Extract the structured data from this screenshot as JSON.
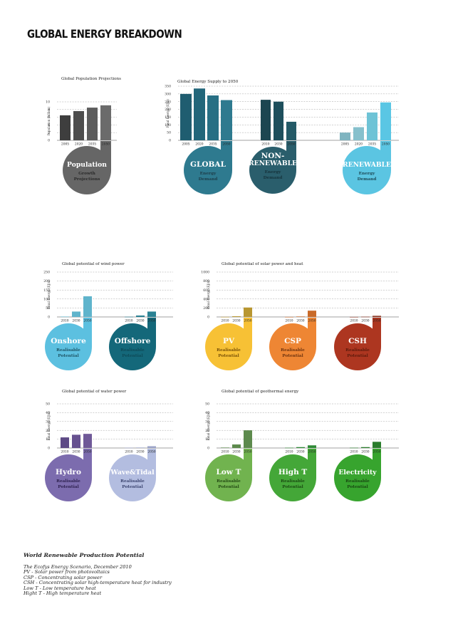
{
  "page": {
    "title": "GLOBAL ENERGY BREAKDOWN"
  },
  "footer": {
    "heading": "World Renewable Production Potential",
    "lines": [
      "The Ecofys Energy Scenario, December 2010",
      "PV - Solar power from photovoltaics",
      "CSP - Concentrating solar power",
      "CSH - Concentrating solar high-temperature heat for industry",
      "Low T - Low temperature heat",
      "Hight T - High temperature heat"
    ]
  },
  "chart_data": [
    {
      "id": "population",
      "type": "bar",
      "title": "Global Population Projections",
      "ylabel": "Population (billion)",
      "ylim": [
        0,
        10
      ],
      "yticks": [
        0,
        2,
        4,
        6,
        8,
        10
      ],
      "grid": true,
      "groups": [
        {
          "categories": [
            "2005",
            "2020",
            "2035",
            "2050"
          ],
          "values": [
            6.5,
            7.6,
            8.5,
            9.1
          ],
          "colors": [
            "#3e3e3e",
            "#4d4d4d",
            "#5c5c5c",
            "#6b6b6b"
          ],
          "label": {
            "title": [
              "Population"
            ],
            "sub": [
              "Growth",
              "Projections"
            ],
            "color": "#666666",
            "title_color": "#ffffff",
            "sub_color": "#2a2a2a"
          }
        }
      ]
    },
    {
      "id": "supply",
      "type": "bar",
      "title": "Global Energy Supply to 2050",
      "ylabel": "Final Energy (EJ/a)",
      "ylim": [
        0,
        350
      ],
      "yticks": [
        0,
        50,
        100,
        150,
        200,
        250,
        300,
        350
      ],
      "grid": true,
      "groups": [
        {
          "categories": [
            "2005",
            "2020",
            "2035",
            "2050"
          ],
          "values": [
            300,
            335,
            290,
            260
          ],
          "colors": [
            "#1f5d70",
            "#22667a",
            "#276f84",
            "#2e7a8f"
          ],
          "label": {
            "title": [
              "GLOBAL"
            ],
            "sub": [
              "Energy",
              "Demand"
            ],
            "color": "#2e7a8f",
            "title_color": "#ffffff",
            "sub_color": "#1d3e4a"
          }
        },
        {
          "categories": [
            "2010",
            "2030",
            "2050"
          ],
          "values": [
            262,
            250,
            120
          ],
          "colors": [
            "#1c4651",
            "#1e4f5c",
            "#245a67"
          ],
          "label": {
            "title": [
              "NON-",
              "RENEWABLE"
            ],
            "sub": [
              "Energy",
              "Demand"
            ],
            "color": "#2a5e6c",
            "title_color": "#ffffff",
            "sub_color": "#16343d"
          }
        },
        {
          "categories": [
            "2005",
            "2020",
            "2035",
            "2050"
          ],
          "values": [
            50,
            85,
            180,
            245
          ],
          "colors": [
            "#7fb4c0",
            "#86c0cc",
            "#6ec3d6",
            "#5ac6e4"
          ],
          "label": {
            "title": [
              "RENEWABLE"
            ],
            "sub": [
              "Energy",
              "Demand"
            ],
            "color": "#5bc5e2",
            "title_color": "#ffffff",
            "sub_color": "#1e4c5a"
          }
        }
      ]
    },
    {
      "id": "wind",
      "type": "bar",
      "title": "Global potential of wind power",
      "ylabel": "Final Energy (EJ/a)",
      "ylim": [
        0,
        250
      ],
      "yticks": [
        0,
        50,
        100,
        150,
        200,
        250
      ],
      "grid": true,
      "groups": [
        {
          "categories": [
            "2010",
            "2030",
            "2050"
          ],
          "values": [
            2,
            30,
            115
          ],
          "colors": [
            "#5fb4cc",
            "#5fb4cc",
            "#5fb4cc"
          ],
          "label": {
            "title": [
              "Onshore"
            ],
            "sub": [
              "Realisable",
              "Potential"
            ],
            "color": "#5cc0e0",
            "title_color": "#ffffff",
            "sub_color": "#1f5566"
          }
        },
        {
          "categories": [
            "2010",
            "2030",
            "2050"
          ],
          "values": [
            1,
            8,
            30
          ],
          "colors": [
            "#2a8294",
            "#2a8294",
            "#2a8294"
          ],
          "label": {
            "title": [
              "Offshore"
            ],
            "sub": [
              "Realisable",
              "Potential"
            ],
            "color": "#14687a",
            "title_color": "#ffffff",
            "sub_color": "#0e4a57"
          }
        }
      ]
    },
    {
      "id": "solar",
      "type": "bar",
      "title": "Global potential of solar power and heat",
      "ylabel": "Final Energy (EJ/a)",
      "ylim": [
        0,
        1000
      ],
      "yticks": [
        0,
        200,
        400,
        600,
        800,
        1000
      ],
      "grid": true,
      "groups": [
        {
          "categories": [
            "2010",
            "2030",
            "2050"
          ],
          "values": [
            2,
            15,
            210
          ],
          "colors": [
            "#b89630",
            "#b89630",
            "#b89630"
          ],
          "label": {
            "title": [
              "PV"
            ],
            "sub": [
              "Realisable",
              "Potential"
            ],
            "color": "#f7c135",
            "title_color": "#ffffff",
            "sub_color": "#7a5208"
          }
        },
        {
          "categories": [
            "2010",
            "2030",
            "2050"
          ],
          "values": [
            1,
            10,
            140
          ],
          "colors": [
            "#c96a28",
            "#c96a28",
            "#c96a28"
          ],
          "label": {
            "title": [
              "CSP"
            ],
            "sub": [
              "Realisable",
              "Potential"
            ],
            "color": "#ee8634",
            "title_color": "#ffffff",
            "sub_color": "#6e3410"
          }
        },
        {
          "categories": [
            "2010",
            "2030",
            "2050"
          ],
          "values": [
            1,
            5,
            25
          ],
          "colors": [
            "#8a2f1c",
            "#8a2f1c",
            "#8a2f1c"
          ],
          "label": {
            "title": [
              "CSH"
            ],
            "sub": [
              "Realisable",
              "Potential"
            ],
            "color": "#ad3620",
            "title_color": "#ffffff",
            "sub_color": "#5e1a0c"
          }
        }
      ]
    },
    {
      "id": "water",
      "type": "bar",
      "title": "Global potential of water power",
      "ylabel": "Final Energy (EJ/a)",
      "ylim": [
        0,
        50
      ],
      "yticks": [
        0,
        10,
        20,
        30,
        40,
        50
      ],
      "grid": true,
      "groups": [
        {
          "categories": [
            "2010",
            "2030",
            "2050"
          ],
          "values": [
            12,
            15,
            16
          ],
          "colors": [
            "#5e4a86",
            "#66518f",
            "#6f5998"
          ],
          "label": {
            "title": [
              "Hydro"
            ],
            "sub": [
              "Realisable",
              "Potential"
            ],
            "color": "#7c6cae",
            "title_color": "#ffffff",
            "sub_color": "#2e2150"
          }
        },
        {
          "categories": [
            "2010",
            "2030",
            "2050"
          ],
          "values": [
            0.3,
            0.5,
            2
          ],
          "colors": [
            "#9aa3c8",
            "#9aa3c8",
            "#9aa3c8"
          ],
          "label": {
            "title": [
              "Wave&Tidal"
            ],
            "sub": [
              "Realisable",
              "Potential"
            ],
            "color": "#b3bde0",
            "title_color": "#ffffff",
            "sub_color": "#3c4570"
          }
        }
      ]
    },
    {
      "id": "geothermal",
      "type": "bar",
      "title": "Global potential of geothermal energy",
      "ylabel": "Final Energy (EJ/a)",
      "ylim": [
        0,
        50
      ],
      "yticks": [
        0,
        10,
        20,
        30,
        40,
        50
      ],
      "grid": true,
      "groups": [
        {
          "categories": [
            "2010",
            "2030",
            "2050"
          ],
          "values": [
            0.5,
            4,
            20
          ],
          "colors": [
            "#5d8a4d",
            "#5d8a4d",
            "#5d8a4d"
          ],
          "label": {
            "title": [
              "Low T"
            ],
            "sub": [
              "Realisable",
              "Potential"
            ],
            "color": "#71b34f",
            "title_color": "#ffffff",
            "sub_color": "#234a14"
          }
        },
        {
          "categories": [
            "2010",
            "2030",
            "2050"
          ],
          "values": [
            0.3,
            1,
            3
          ],
          "colors": [
            "#2f8a36",
            "#2f8a36",
            "#2f8a36"
          ],
          "label": {
            "title": [
              "High T"
            ],
            "sub": [
              "Realisable",
              "Potential"
            ],
            "color": "#44a738",
            "title_color": "#ffffff",
            "sub_color": "#1a4a12"
          }
        },
        {
          "categories": [
            "2010",
            "2030",
            "2050"
          ],
          "values": [
            0.3,
            1,
            7
          ],
          "colors": [
            "#2a7d2c",
            "#2a7d2c",
            "#2a7d2c"
          ],
          "label": {
            "title": [
              "Electricity"
            ],
            "sub": [
              "Realisable",
              "Potential"
            ],
            "color": "#37a42e",
            "title_color": "#ffffff",
            "sub_color": "#184812"
          }
        }
      ]
    }
  ]
}
